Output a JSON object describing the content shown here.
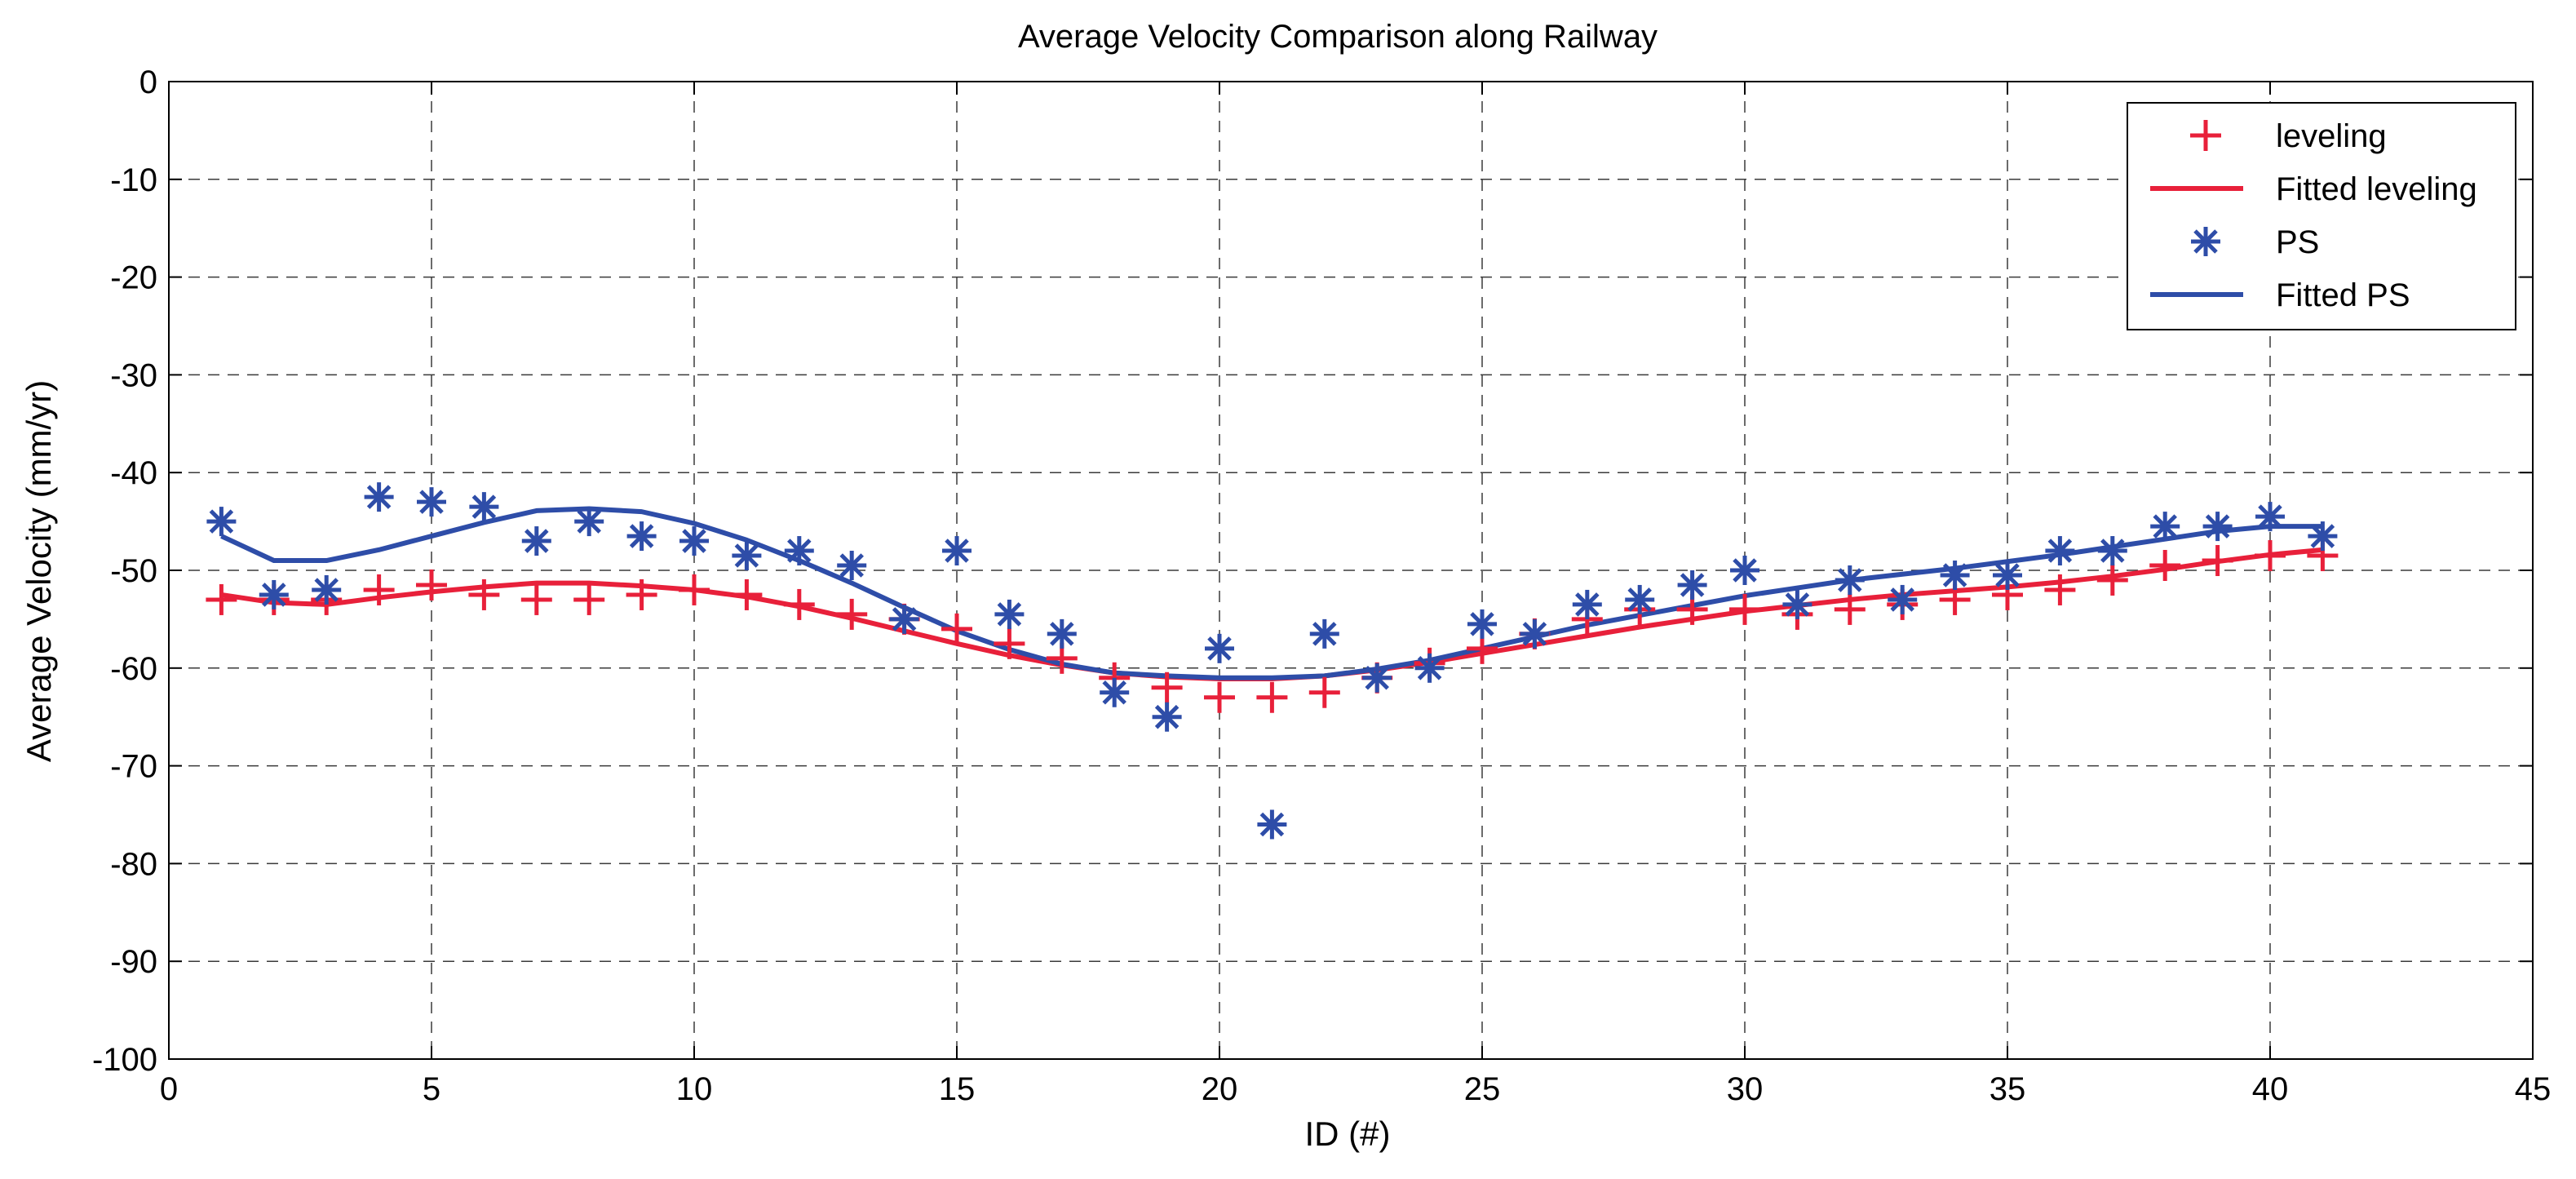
{
  "chart_data": {
    "type": "line",
    "title": "Average Velocity Comparison along Railway",
    "xlabel": "ID (#)",
    "ylabel": "Average Velocity (mm/yr)",
    "xlim": [
      0,
      45
    ],
    "ylim": [
      -100,
      0
    ],
    "xticks": [
      0,
      5,
      10,
      15,
      20,
      25,
      30,
      35,
      40,
      45
    ],
    "yticks": [
      0,
      -10,
      -20,
      -30,
      -40,
      -50,
      -60,
      -70,
      -80,
      -90,
      -100
    ],
    "grid": true,
    "legend_position": "top-right",
    "x": [
      1,
      2,
      3,
      4,
      5,
      6,
      7,
      8,
      9,
      10,
      11,
      12,
      13,
      14,
      15,
      16,
      17,
      18,
      19,
      20,
      21,
      22,
      23,
      24,
      25,
      26,
      27,
      28,
      29,
      30,
      31,
      32,
      33,
      34,
      35,
      36,
      37,
      38,
      39,
      40,
      41
    ],
    "series": [
      {
        "name": "leveling",
        "kind": "marker",
        "marker": "plus",
        "color": "#e8203a",
        "values": [
          -53,
          -53,
          -53,
          -52,
          -51.5,
          -52.5,
          -53,
          -53,
          -52.5,
          -52,
          -52.5,
          -53.5,
          -54.5,
          -55,
          -56,
          -57.5,
          -59,
          -61,
          -62,
          -63,
          -63,
          -62.5,
          -61,
          -59.5,
          -58,
          -56.5,
          -55,
          -54,
          -54,
          -54,
          -54.5,
          -54,
          -53.5,
          -53,
          -52.5,
          -52,
          -51,
          -49.5,
          -49,
          -48.5,
          -48.5
        ]
      },
      {
        "name": "Fitted leveling",
        "kind": "line",
        "color": "#e8203a",
        "values": [
          -52.5,
          -53.3,
          -53.5,
          -52.8,
          -52.2,
          -51.7,
          -51.3,
          -51.3,
          -51.6,
          -52,
          -52.7,
          -53.7,
          -54.9,
          -56.2,
          -57.5,
          -58.7,
          -59.7,
          -60.5,
          -60.9,
          -61.1,
          -61.1,
          -60.8,
          -60.2,
          -59.4,
          -58.5,
          -57.6,
          -56.7,
          -55.8,
          -55,
          -54.2,
          -53.6,
          -53,
          -52.5,
          -52.1,
          -51.7,
          -51.2,
          -50.6,
          -49.9,
          -49.1,
          -48.4,
          -47.9
        ]
      },
      {
        "name": "PS",
        "kind": "marker",
        "marker": "asterisk",
        "color": "#2e4da8",
        "values": [
          -45,
          -52.5,
          -52,
          -42.5,
          -43,
          -43.5,
          -47,
          -45,
          -46.5,
          -47,
          -48.5,
          -48,
          -49.5,
          -55,
          -48,
          -54.5,
          -56.5,
          -62.5,
          -65,
          -58,
          -76,
          -56.5,
          -61,
          -60,
          -55.5,
          -56.5,
          -53.5,
          -53,
          -51.5,
          -50,
          -53.5,
          -51,
          -53,
          -50.5,
          -50.5,
          -48,
          -48,
          -45.5,
          -45.5,
          -44.5,
          -46.5
        ]
      },
      {
        "name": "Fitted PS",
        "kind": "line",
        "color": "#2e4da8",
        "values": [
          -46.5,
          -49,
          -49,
          -47.9,
          -46.5,
          -45.1,
          -43.9,
          -43.7,
          -44,
          -45.2,
          -46.9,
          -49,
          -51.3,
          -53.8,
          -56.2,
          -58.1,
          -59.6,
          -60.5,
          -60.8,
          -61,
          -61,
          -60.8,
          -60.1,
          -59.2,
          -58,
          -56.8,
          -55.6,
          -54.6,
          -53.6,
          -52.6,
          -51.8,
          -51,
          -50.4,
          -49.8,
          -49.1,
          -48.4,
          -47.6,
          -46.8,
          -46,
          -45.5,
          -45.5
        ]
      }
    ]
  }
}
